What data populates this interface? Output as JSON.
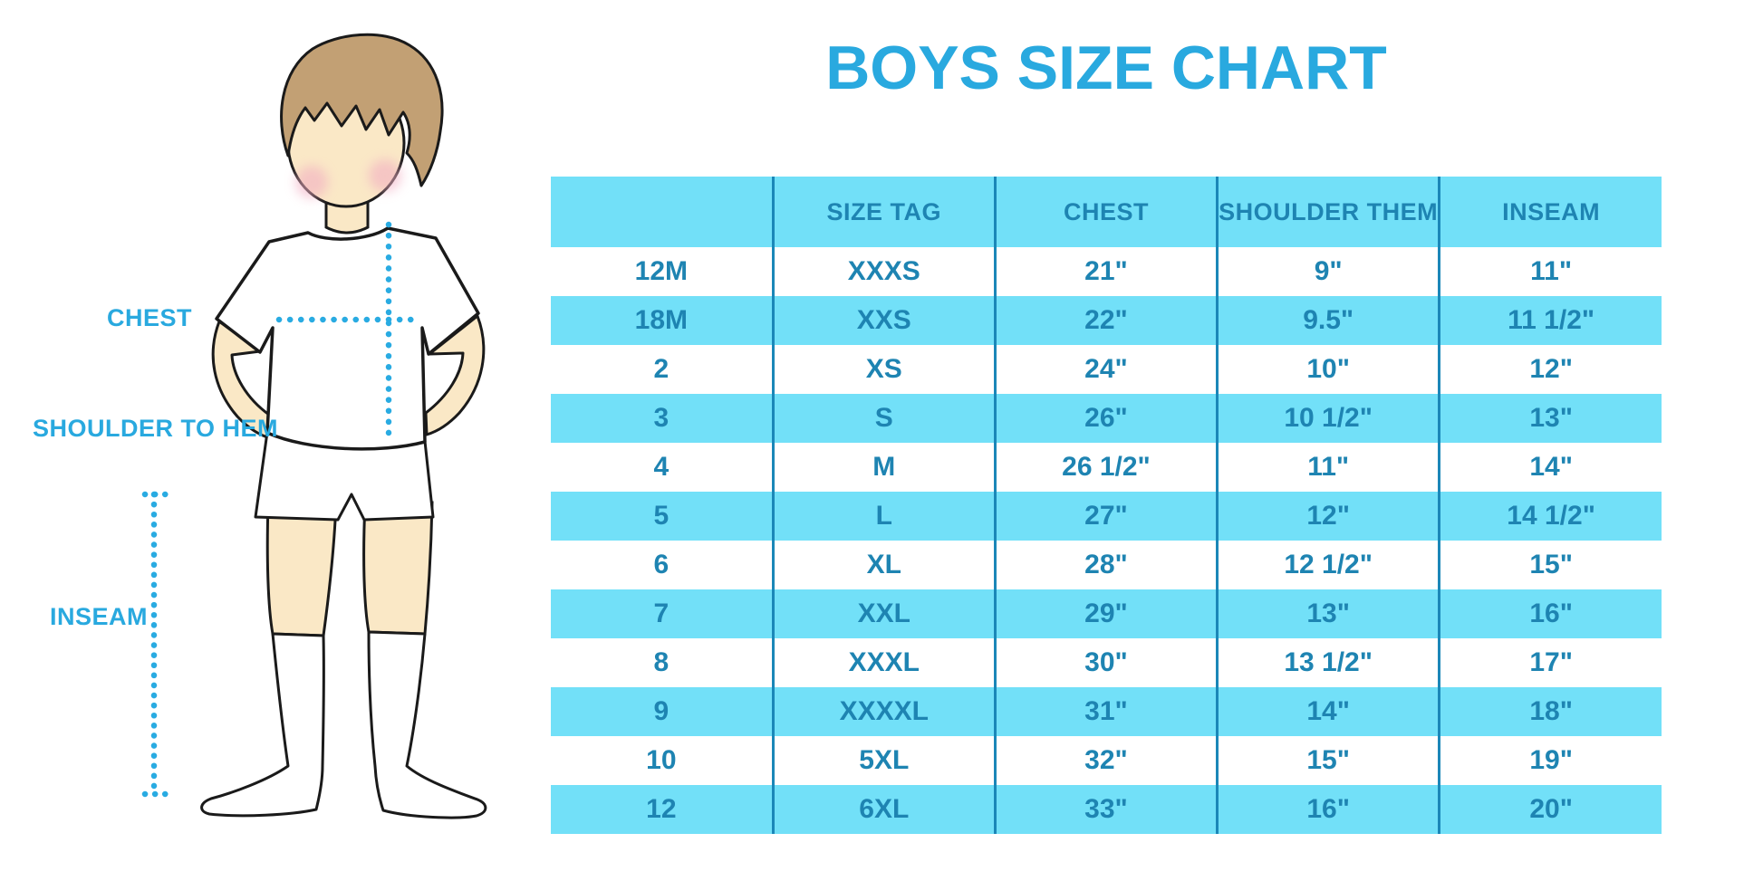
{
  "title": "BOYS SIZE CHART",
  "figure_labels": {
    "chest": "CHEST",
    "shoulder_to_hem": "SHOULDER TO HEM",
    "inseam": "INSEAM"
  },
  "chart_data": {
    "type": "table",
    "title": "BOYS SIZE CHART",
    "columns": [
      "",
      "SIZE TAG",
      "CHEST",
      "SHOULDER THEM",
      "INSEAM"
    ],
    "rows": [
      [
        "12M",
        "XXXS",
        "21\"",
        "9\"",
        "11\""
      ],
      [
        "18M",
        "XXS",
        "22\"",
        "9.5\"",
        "11 1/2\""
      ],
      [
        "2",
        "XS",
        "24\"",
        "10\"",
        "12\""
      ],
      [
        "3",
        "S",
        "26\"",
        "10 1/2\"",
        "13\""
      ],
      [
        "4",
        "M",
        "26 1/2\"",
        "11\"",
        "14\""
      ],
      [
        "5",
        "L",
        "27\"",
        "12\"",
        "14 1/2\""
      ],
      [
        "6",
        "XL",
        "28\"",
        "12 1/2\"",
        "15\""
      ],
      [
        "7",
        "XXL",
        "29\"",
        "13\"",
        "16\""
      ],
      [
        "8",
        "XXXL",
        "30\"",
        "13 1/2\"",
        "17\""
      ],
      [
        "9",
        "XXXXL",
        "31\"",
        "14\"",
        "18\""
      ],
      [
        "10",
        "5XL",
        "32\"",
        "15\"",
        "19\""
      ],
      [
        "12",
        "6XL",
        "33\"",
        "16\"",
        "20\""
      ]
    ]
  },
  "colors": {
    "title_blue": "#29A9DF",
    "band_cyan": "#72E0F8",
    "cell_text": "#1E84B2",
    "divider": "#1B87B8",
    "dotted_line": "#29ABE2",
    "skin": "#FAE8C6",
    "hair": "#C2A074",
    "cheek": "#F2AEC2",
    "outline": "#1a1a1a"
  }
}
